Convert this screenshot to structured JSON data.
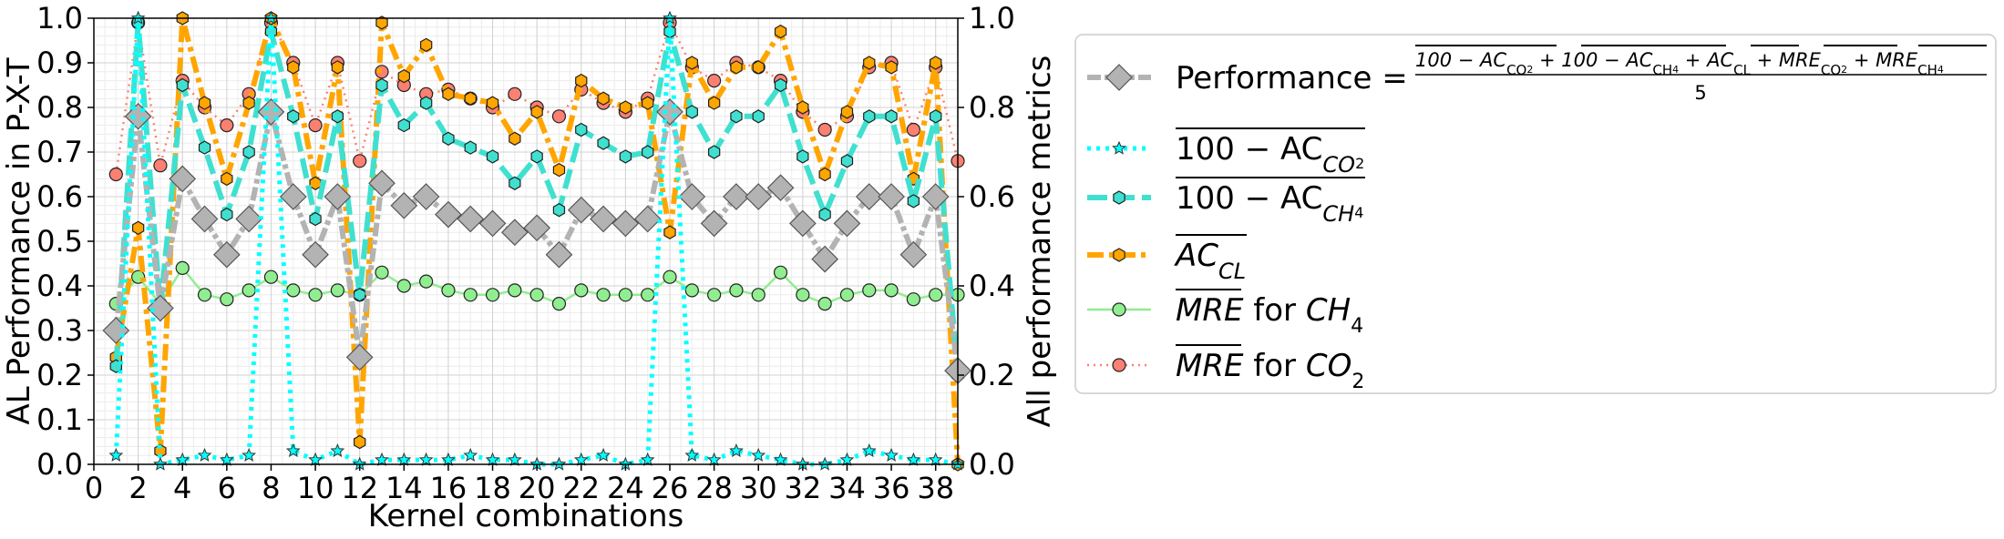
{
  "chart_data": {
    "type": "line",
    "xlabel": "Kernel combinations",
    "ylabel_left": "AL Performance in P-X-T",
    "ylabel_right": "All performance metrics",
    "xlim": [
      0,
      39
    ],
    "ylim_left": [
      0,
      1
    ],
    "ylim_right": [
      0,
      1
    ],
    "grid": "minor+major",
    "legend_position": "right-outside",
    "x_ticks": [
      "0",
      "2",
      "4",
      "6",
      "8",
      "10",
      "12",
      "14",
      "16",
      "18",
      "20",
      "22",
      "24",
      "26",
      "28",
      "30",
      "32",
      "34",
      "36",
      "38"
    ],
    "y_ticks_left": [
      "0.0",
      "0.1",
      "0.2",
      "0.3",
      "0.4",
      "0.5",
      "0.6",
      "0.7",
      "0.8",
      "0.9",
      "1.0"
    ],
    "y_ticks_right": [
      "0.0",
      "0.2",
      "0.4",
      "0.6",
      "0.8",
      "1.0"
    ],
    "x": [
      1,
      2,
      3,
      4,
      5,
      6,
      7,
      8,
      9,
      10,
      11,
      12,
      13,
      14,
      15,
      16,
      17,
      18,
      19,
      20,
      21,
      22,
      23,
      24,
      25,
      26,
      27,
      28,
      29,
      30,
      31,
      32,
      33,
      34,
      35,
      36,
      37,
      38,
      39
    ],
    "series": [
      {
        "key": "performance",
        "legend_label": "Performance =",
        "formula": {
          "numerator_parts": [
            "100 − AC",
            "CO",
            "2",
            " + ",
            "100 − AC",
            "CH",
            "4",
            " + ",
            "AC",
            "CL",
            " + ",
            "MRE",
            "CO",
            "2",
            " + ",
            "MRE",
            "CH",
            "4"
          ],
          "denominator": "5"
        },
        "color": "#b3b3b3",
        "marker": "diamond",
        "values": [
          0.3,
          0.78,
          0.35,
          0.64,
          0.55,
          0.47,
          0.55,
          0.79,
          0.6,
          0.47,
          0.6,
          0.24,
          0.63,
          0.58,
          0.6,
          0.56,
          0.55,
          0.54,
          0.52,
          0.53,
          0.47,
          0.57,
          0.55,
          0.54,
          0.55,
          0.79,
          0.6,
          0.54,
          0.6,
          0.6,
          0.62,
          0.54,
          0.46,
          0.54,
          0.6,
          0.6,
          0.47,
          0.6,
          0.21
        ]
      },
      {
        "key": "ac_co2",
        "legend_label": "100 − AC",
        "legend_sub": "CO",
        "legend_subsub": "2",
        "color": "#00ffff",
        "marker": "star",
        "values": [
          0.02,
          1.0,
          0.0,
          0.01,
          0.02,
          0.01,
          0.02,
          1.0,
          0.03,
          0.01,
          0.03,
          0.0,
          0.01,
          0.01,
          0.01,
          0.01,
          0.02,
          0.01,
          0.01,
          0.0,
          0.0,
          0.01,
          0.02,
          0.0,
          0.01,
          1.0,
          0.02,
          0.01,
          0.03,
          0.02,
          0.01,
          0.0,
          0.0,
          0.01,
          0.03,
          0.02,
          0.01,
          0.01,
          0.0
        ]
      },
      {
        "key": "ac_ch4",
        "legend_label": "100 − AC",
        "legend_sub": "CH",
        "legend_subsub": "4",
        "color": "#40e0d0",
        "marker": "hexagon",
        "values": [
          0.22,
          0.99,
          0.35,
          0.85,
          0.71,
          0.56,
          0.7,
          0.97,
          0.78,
          0.55,
          0.78,
          0.38,
          0.85,
          0.76,
          0.81,
          0.73,
          0.71,
          0.69,
          0.63,
          0.69,
          0.57,
          0.75,
          0.72,
          0.69,
          0.7,
          0.97,
          0.79,
          0.7,
          0.78,
          0.78,
          0.85,
          0.69,
          0.56,
          0.68,
          0.78,
          0.78,
          0.59,
          0.78,
          0.2
        ]
      },
      {
        "key": "ac_cl",
        "legend_label": "AC",
        "legend_sub": "CL",
        "color": "#ffa500",
        "marker": "hexagon",
        "values": [
          0.24,
          0.53,
          0.03,
          1.0,
          0.81,
          0.64,
          0.81,
          1.0,
          0.89,
          0.63,
          0.89,
          0.05,
          0.99,
          0.87,
          0.94,
          0.83,
          0.82,
          0.81,
          0.73,
          0.79,
          0.66,
          0.86,
          0.82,
          0.8,
          0.81,
          0.52,
          0.9,
          0.81,
          0.89,
          0.89,
          0.97,
          0.8,
          0.65,
          0.79,
          0.9,
          0.89,
          0.64,
          0.9,
          0.0
        ]
      },
      {
        "key": "mre_ch4",
        "legend_label": "MRE",
        "legend_suffix": " for ",
        "legend_species": "CH",
        "legend_species_sub": "4",
        "color": "#90ee90",
        "marker": "circle",
        "values": [
          0.36,
          0.42,
          0.36,
          0.44,
          0.38,
          0.37,
          0.39,
          0.42,
          0.39,
          0.38,
          0.39,
          0.38,
          0.43,
          0.4,
          0.41,
          0.39,
          0.38,
          0.38,
          0.39,
          0.38,
          0.36,
          0.39,
          0.38,
          0.38,
          0.38,
          0.42,
          0.39,
          0.38,
          0.39,
          0.38,
          0.43,
          0.38,
          0.36,
          0.38,
          0.39,
          0.39,
          0.37,
          0.38,
          0.38
        ]
      },
      {
        "key": "mre_co2",
        "legend_label": "MRE",
        "legend_suffix": " for ",
        "legend_species": "CO",
        "legend_species_sub": "2",
        "color": "#fa8072",
        "marker": "circle",
        "values": [
          0.65,
          0.99,
          0.67,
          0.86,
          0.8,
          0.76,
          0.83,
          0.99,
          0.9,
          0.76,
          0.9,
          0.68,
          0.88,
          0.85,
          0.83,
          0.84,
          0.82,
          0.8,
          0.83,
          0.8,
          0.78,
          0.84,
          0.81,
          0.79,
          0.82,
          0.99,
          0.89,
          0.86,
          0.9,
          0.89,
          0.86,
          0.79,
          0.75,
          0.78,
          0.89,
          0.9,
          0.75,
          0.89,
          0.68
        ]
      }
    ]
  }
}
